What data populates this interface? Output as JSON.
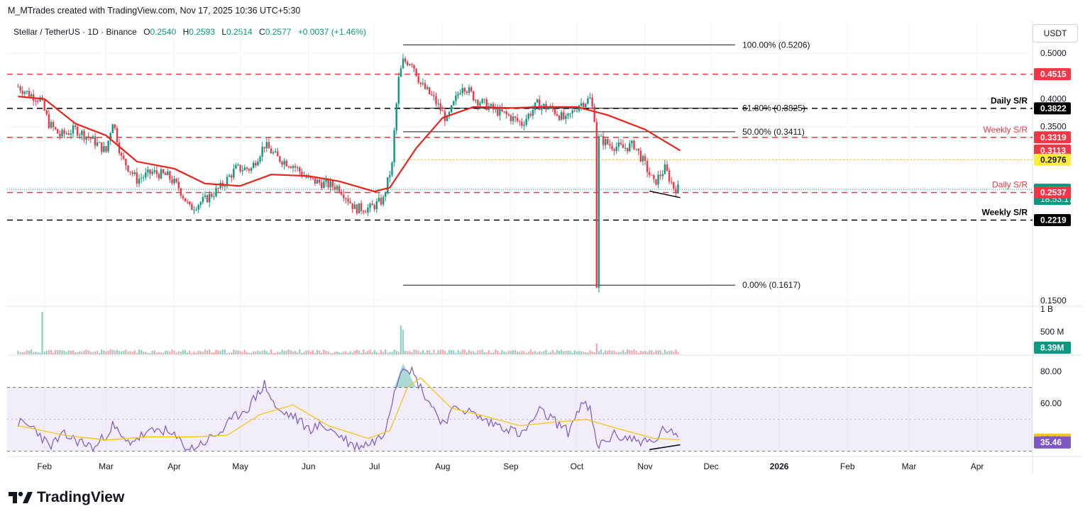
{
  "header": {
    "credit": "M_MTrades created with TradingView.com, Nov 17, 2025 10:36 UTC+5:30",
    "symbol": "Stellar / TetherUS · 1D · Binance",
    "ohlc": {
      "o_label": "O",
      "o": "0.2540",
      "h_label": "H",
      "h": "0.2593",
      "l_label": "L",
      "l": "0.2514",
      "c_label": "C",
      "c": "0.2577",
      "change": "+0.0037 (+1.46%)"
    },
    "currency_button": "USDT"
  },
  "logo": {
    "text": "TradingView",
    "icon": "tradingview-logo-icon"
  },
  "colors": {
    "up": "#089981",
    "down": "#f23645",
    "ma": "#e8231a",
    "rsi": "#7e57c2",
    "rsi_ma": "#f5c518",
    "support_black": "#000000"
  },
  "chart_data": [
    {
      "type": "candlestick",
      "title": "Stellar / TetherUS · 1D · Binance",
      "x_ticks": [
        "Feb",
        "Mar",
        "Apr",
        "May",
        "Jun",
        "Jul",
        "Aug",
        "Sep",
        "Oct",
        "Nov",
        "Dec",
        "2026",
        "Feb",
        "Mar",
        "Apr"
      ],
      "y_ticks": [
        "0.5000",
        "0.4000",
        "0.3500",
        "0.1500"
      ],
      "ylim": [
        0.15,
        0.52
      ],
      "y_scale": "log",
      "price_close_path": [
        [
          "2025-01-20",
          0.425
        ],
        [
          "2025-01-25",
          0.41
        ],
        [
          "2025-01-30",
          0.4
        ],
        [
          "2025-02-03",
          0.355
        ],
        [
          "2025-02-08",
          0.335
        ],
        [
          "2025-02-15",
          0.345
        ],
        [
          "2025-02-22",
          0.33
        ],
        [
          "2025-03-01",
          0.31
        ],
        [
          "2025-03-04",
          0.36
        ],
        [
          "2025-03-08",
          0.3
        ],
        [
          "2025-03-15",
          0.27
        ],
        [
          "2025-03-22",
          0.28
        ],
        [
          "2025-03-29",
          0.275
        ],
        [
          "2025-04-03",
          0.26
        ],
        [
          "2025-04-08",
          0.235
        ],
        [
          "2025-04-15",
          0.245
        ],
        [
          "2025-04-22",
          0.26
        ],
        [
          "2025-04-29",
          0.285
        ],
        [
          "2025-05-06",
          0.285
        ],
        [
          "2025-05-12",
          0.32
        ],
        [
          "2025-05-18",
          0.3
        ],
        [
          "2025-05-25",
          0.29
        ],
        [
          "2025-06-01",
          0.27
        ],
        [
          "2025-06-08",
          0.265
        ],
        [
          "2025-06-15",
          0.26
        ],
        [
          "2025-06-22",
          0.235
        ],
        [
          "2025-06-29",
          0.235
        ],
        [
          "2025-07-05",
          0.245
        ],
        [
          "2025-07-09",
          0.29
        ],
        [
          "2025-07-12",
          0.44
        ],
        [
          "2025-07-14",
          0.48
        ],
        [
          "2025-07-18",
          0.48
        ],
        [
          "2025-07-22",
          0.43
        ],
        [
          "2025-07-28",
          0.4
        ],
        [
          "2025-08-03",
          0.36
        ],
        [
          "2025-08-10",
          0.43
        ],
        [
          "2025-08-16",
          0.4
        ],
        [
          "2025-08-24",
          0.38
        ],
        [
          "2025-08-30",
          0.37
        ],
        [
          "2025-09-06",
          0.355
        ],
        [
          "2025-09-13",
          0.39
        ],
        [
          "2025-09-20",
          0.38
        ],
        [
          "2025-09-26",
          0.36
        ],
        [
          "2025-10-02",
          0.39
        ],
        [
          "2025-10-07",
          0.4
        ],
        [
          "2025-10-10",
          0.35
        ],
        [
          "2025-10-10",
          0.1617
        ],
        [
          "2025-10-11",
          0.33
        ],
        [
          "2025-10-16",
          0.32
        ],
        [
          "2025-10-22",
          0.315
        ],
        [
          "2025-10-27",
          0.32
        ],
        [
          "2025-11-01",
          0.29
        ],
        [
          "2025-11-05",
          0.265
        ],
        [
          "2025-11-10",
          0.285
        ],
        [
          "2025-11-14",
          0.26
        ],
        [
          "2025-11-17",
          0.2577
        ]
      ],
      "ma_path": [
        [
          "2025-01-20",
          0.405
        ],
        [
          "2025-02-01",
          0.4
        ],
        [
          "2025-02-15",
          0.355
        ],
        [
          "2025-03-01",
          0.335
        ],
        [
          "2025-03-15",
          0.295
        ],
        [
          "2025-04-01",
          0.285
        ],
        [
          "2025-04-15",
          0.265
        ],
        [
          "2025-05-01",
          0.262
        ],
        [
          "2025-05-15",
          0.277
        ],
        [
          "2025-06-01",
          0.275
        ],
        [
          "2025-06-15",
          0.268
        ],
        [
          "2025-07-01",
          0.255
        ],
        [
          "2025-07-08",
          0.26
        ],
        [
          "2025-07-20",
          0.315
        ],
        [
          "2025-08-01",
          0.365
        ],
        [
          "2025-08-15",
          0.385
        ],
        [
          "2025-09-01",
          0.383
        ],
        [
          "2025-09-15",
          0.385
        ],
        [
          "2025-10-01",
          0.385
        ],
        [
          "2025-10-15",
          0.37
        ],
        [
          "2025-11-01",
          0.345
        ],
        [
          "2025-11-17",
          0.3113
        ]
      ],
      "fibonacci": {
        "start": "2025-07-14",
        "end": "2025-12-12",
        "levels": [
          {
            "label": "100.00% (0.5206)",
            "value": 0.5206
          },
          {
            "label": "61.80% (0.3825)",
            "value": 0.3825
          },
          {
            "label": "50.00% (0.3411)",
            "value": 0.3411
          },
          {
            "label": "0.00% (0.1617)",
            "value": 0.1617
          }
        ]
      },
      "horizontal_lines": [
        {
          "value": 0.4515,
          "style": "dashed",
          "color": "#f23645"
        },
        {
          "value": 0.3822,
          "style": "dashed",
          "color": "#000000",
          "annotation": "Daily S/R"
        },
        {
          "value": 0.3319,
          "style": "dashed",
          "color": "#f23645",
          "annotation": "Weekly S/R"
        },
        {
          "value": 0.2976,
          "style": "dotted",
          "color": "#f5c518",
          "start": "2025-07-14"
        },
        {
          "value": 0.2537,
          "style": "dashed",
          "color": "#f23645",
          "annotation": "Daily S/R"
        },
        {
          "value": 0.2219,
          "style": "dashed",
          "color": "#000000",
          "annotation": "Weekly S/R"
        }
      ],
      "divergence_line_price": [
        [
          "2025-11-03",
          0.2555
        ],
        [
          "2025-11-17",
          0.2475
        ]
      ],
      "price_labels": [
        {
          "text": "0.4515",
          "value": 0.4515,
          "bg": "#f23645",
          "fg": "#ffffff"
        },
        {
          "text": "0.3822",
          "value": 0.3822,
          "bg": "#000000",
          "fg": "#ffffff"
        },
        {
          "text": "0.3319",
          "value": 0.3319,
          "bg": "#f23645",
          "fg": "#ffffff"
        },
        {
          "text": "0.3113",
          "value": 0.3113,
          "bg": "#f23645",
          "fg": "#ffffff"
        },
        {
          "text": "0.2976",
          "value": 0.2976,
          "bg": "#ffeb3b",
          "fg": "#131722"
        },
        {
          "text": "0.2577",
          "sub": "18:53:17",
          "value": 0.2577,
          "bg": "#089981",
          "fg": "#ffffff"
        },
        {
          "text": "0.2537",
          "value": 0.2537,
          "bg": "#f23645",
          "fg": "#ffffff"
        },
        {
          "text": "0.2219",
          "value": 0.2219,
          "bg": "#000000",
          "fg": "#ffffff"
        }
      ]
    },
    {
      "type": "bar",
      "title": "Volume",
      "y_ticks": [
        "1 B",
        "500 M"
      ],
      "last_value_label": "8.39M",
      "notable_bars": [
        {
          "x": "2025-01-31",
          "value": 1000000000
        },
        {
          "x": "2025-07-13",
          "value": 680000000
        },
        {
          "x": "2025-07-14",
          "value": 580000000
        },
        {
          "x": "2025-10-10",
          "value": 260000000
        },
        {
          "x": "2025-11-17",
          "value": 8390000
        }
      ]
    },
    {
      "type": "line",
      "title": "RSI",
      "y_ticks": [
        "80.00",
        "60.00"
      ],
      "ylim": [
        30,
        90
      ],
      "band": [
        30,
        70
      ],
      "mid": 50,
      "rsi_path": [
        [
          "2025-01-20",
          48
        ],
        [
          "2025-01-28",
          44
        ],
        [
          "2025-02-03",
          33
        ],
        [
          "2025-02-10",
          40
        ],
        [
          "2025-02-17",
          36
        ],
        [
          "2025-02-24",
          32
        ],
        [
          "2025-03-04",
          46
        ],
        [
          "2025-03-10",
          35
        ],
        [
          "2025-03-18",
          40
        ],
        [
          "2025-03-26",
          44
        ],
        [
          "2025-04-02",
          38
        ],
        [
          "2025-04-08",
          31
        ],
        [
          "2025-04-15",
          36
        ],
        [
          "2025-04-22",
          42
        ],
        [
          "2025-04-29",
          52
        ],
        [
          "2025-05-05",
          58
        ],
        [
          "2025-05-12",
          72
        ],
        [
          "2025-05-18",
          55
        ],
        [
          "2025-05-25",
          52
        ],
        [
          "2025-06-01",
          44
        ],
        [
          "2025-06-08",
          46
        ],
        [
          "2025-06-15",
          40
        ],
        [
          "2025-06-22",
          33
        ],
        [
          "2025-06-29",
          35
        ],
        [
          "2025-07-05",
          40
        ],
        [
          "2025-07-10",
          68
        ],
        [
          "2025-07-14",
          85
        ],
        [
          "2025-07-18",
          80
        ],
        [
          "2025-07-24",
          65
        ],
        [
          "2025-08-01",
          48
        ],
        [
          "2025-08-08",
          58
        ],
        [
          "2025-08-14",
          54
        ],
        [
          "2025-08-22",
          48
        ],
        [
          "2025-08-30",
          45
        ],
        [
          "2025-09-06",
          40
        ],
        [
          "2025-09-14",
          55
        ],
        [
          "2025-09-20",
          50
        ],
        [
          "2025-09-27",
          42
        ],
        [
          "2025-10-03",
          60
        ],
        [
          "2025-10-07",
          56
        ],
        [
          "2025-10-10",
          33
        ],
        [
          "2025-10-18",
          40
        ],
        [
          "2025-10-25",
          38
        ],
        [
          "2025-11-01",
          36
        ],
        [
          "2025-11-05",
          35
        ],
        [
          "2025-11-10",
          45
        ],
        [
          "2025-11-17",
          35.46
        ]
      ],
      "rsi_ma_path": [
        [
          "2025-01-20",
          46
        ],
        [
          "2025-02-10",
          40
        ],
        [
          "2025-03-01",
          37
        ],
        [
          "2025-03-20",
          39
        ],
        [
          "2025-04-10",
          39
        ],
        [
          "2025-04-25",
          40
        ],
        [
          "2025-05-10",
          53
        ],
        [
          "2025-05-25",
          59
        ],
        [
          "2025-06-10",
          46
        ],
        [
          "2025-06-28",
          38
        ],
        [
          "2025-07-08",
          43
        ],
        [
          "2025-07-16",
          70
        ],
        [
          "2025-07-22",
          76
        ],
        [
          "2025-08-05",
          57
        ],
        [
          "2025-08-20",
          52
        ],
        [
          "2025-09-05",
          46
        ],
        [
          "2025-09-20",
          48
        ],
        [
          "2025-10-05",
          50
        ],
        [
          "2025-10-20",
          44
        ],
        [
          "2025-11-05",
          38
        ],
        [
          "2025-11-17",
          37.3
        ]
      ],
      "divergence_line_rsi": [
        [
          "2025-11-03",
          31
        ],
        [
          "2025-11-17",
          34
        ]
      ],
      "value_labels": [
        {
          "text": "37.30",
          "value": 37.3,
          "bg": "#f5c518",
          "fg": "#131722"
        },
        {
          "text": "35.46",
          "value": 35.46,
          "bg": "#7e57c2",
          "fg": "#ffffff"
        }
      ]
    }
  ]
}
